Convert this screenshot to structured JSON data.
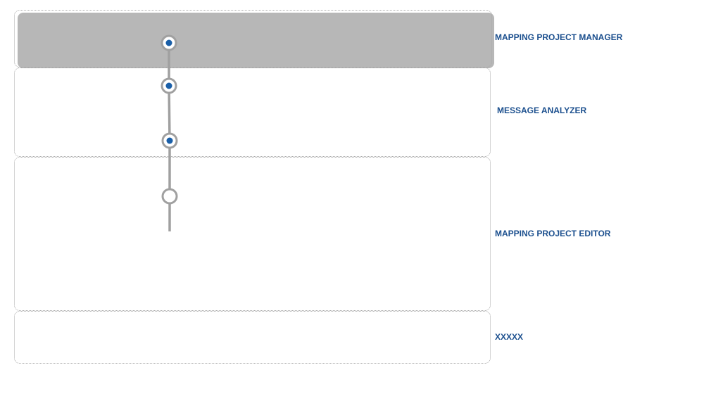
{
  "lanes": [
    {
      "label": "MAPPING PROJECT MANAGER",
      "active": true
    },
    {
      "label": "MESSAGE ANALYZER",
      "active": false
    },
    {
      "label": "MAPPING PROJECT EDITOR",
      "active": false
    },
    {
      "label": "XXXXX",
      "active": false
    }
  ],
  "milestones": [
    {
      "state": "completed"
    },
    {
      "state": "completed"
    },
    {
      "state": "completed"
    },
    {
      "state": "pending"
    }
  ],
  "colors": {
    "accent": "#1a5fa8",
    "label": "#1b4f8e",
    "line": "#a0a0a0",
    "active_band": "#b7b7b7"
  }
}
